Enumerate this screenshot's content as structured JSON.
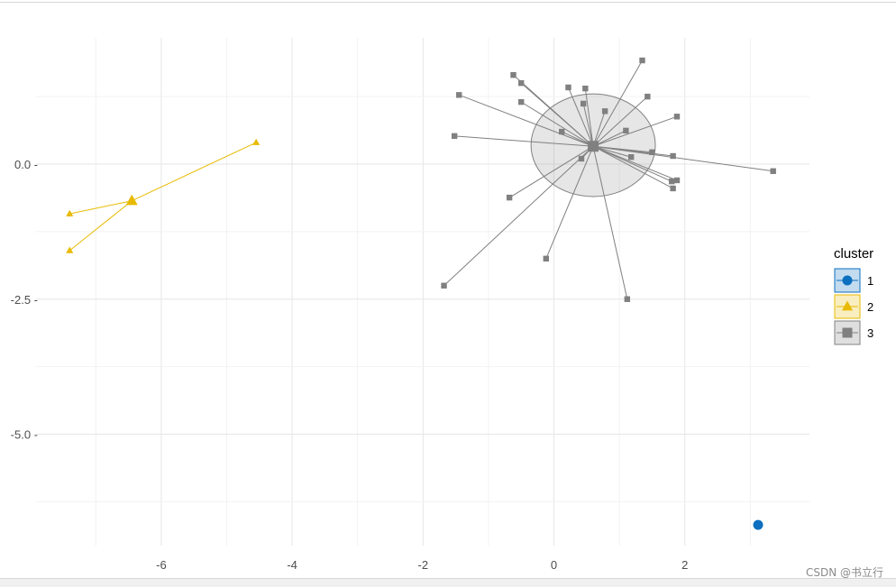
{
  "chart_data": {
    "type": "scatter",
    "subtype": "cluster-plot-with-centroid-spokes",
    "title": "",
    "xlabel": "",
    "ylabel": "",
    "xlim": [
      -7.55,
      3.9
    ],
    "ylim": [
      -7.0,
      2.35
    ],
    "x_ticks": [
      -6,
      -4,
      -2,
      0,
      2
    ],
    "x_tick_labels": [
      "-6",
      "-4",
      "-2",
      "0",
      "2"
    ],
    "y_ticks": [
      0,
      -2.5,
      -5
    ],
    "y_tick_labels": [
      "0.0 -",
      "-2.5 -",
      "-5.0 -"
    ],
    "grid": true,
    "legend_position": "right",
    "legend_title": "cluster",
    "series": [
      {
        "name": "1",
        "color": "#0c6fbf",
        "marker": "circle",
        "centroid": [
          3.12,
          -6.68
        ],
        "points": [
          [
            3.12,
            -6.68
          ]
        ],
        "ellipse": null
      },
      {
        "name": "2",
        "color": "#e8ba00",
        "marker": "triangle",
        "centroid": [
          -6.45,
          -0.68
        ],
        "points": [
          [
            -7.4,
            -0.92
          ],
          [
            -7.4,
            -1.6
          ],
          [
            -4.55,
            0.4
          ]
        ],
        "ellipse": null
      },
      {
        "name": "3",
        "color": "#808080",
        "marker": "square",
        "centroid": [
          0.6,
          0.33
        ],
        "ellipse": {
          "cx": 0.6,
          "cy": 0.35,
          "rx": 0.95,
          "ry": 0.95
        },
        "points": [
          [
            1.35,
            1.92
          ],
          [
            -0.62,
            1.65
          ],
          [
            -0.5,
            1.5
          ],
          [
            0.22,
            1.42
          ],
          [
            0.48,
            1.4
          ],
          [
            -1.45,
            1.28
          ],
          [
            1.43,
            1.25
          ],
          [
            -0.5,
            1.15
          ],
          [
            0.45,
            1.12
          ],
          [
            0.78,
            0.98
          ],
          [
            1.88,
            0.88
          ],
          [
            0.12,
            0.6
          ],
          [
            1.1,
            0.62
          ],
          [
            -1.52,
            0.52
          ],
          [
            1.5,
            0.22
          ],
          [
            1.82,
            0.15
          ],
          [
            1.18,
            0.13
          ],
          [
            0.42,
            0.1
          ],
          [
            1.88,
            -0.3
          ],
          [
            1.8,
            -0.32
          ],
          [
            1.82,
            -0.45
          ],
          [
            3.35,
            -0.13
          ],
          [
            -0.68,
            -0.62
          ],
          [
            -0.12,
            -1.75
          ],
          [
            1.12,
            -2.5
          ],
          [
            -1.68,
            -2.25
          ]
        ]
      }
    ]
  },
  "watermark": "CSDN @书立行"
}
